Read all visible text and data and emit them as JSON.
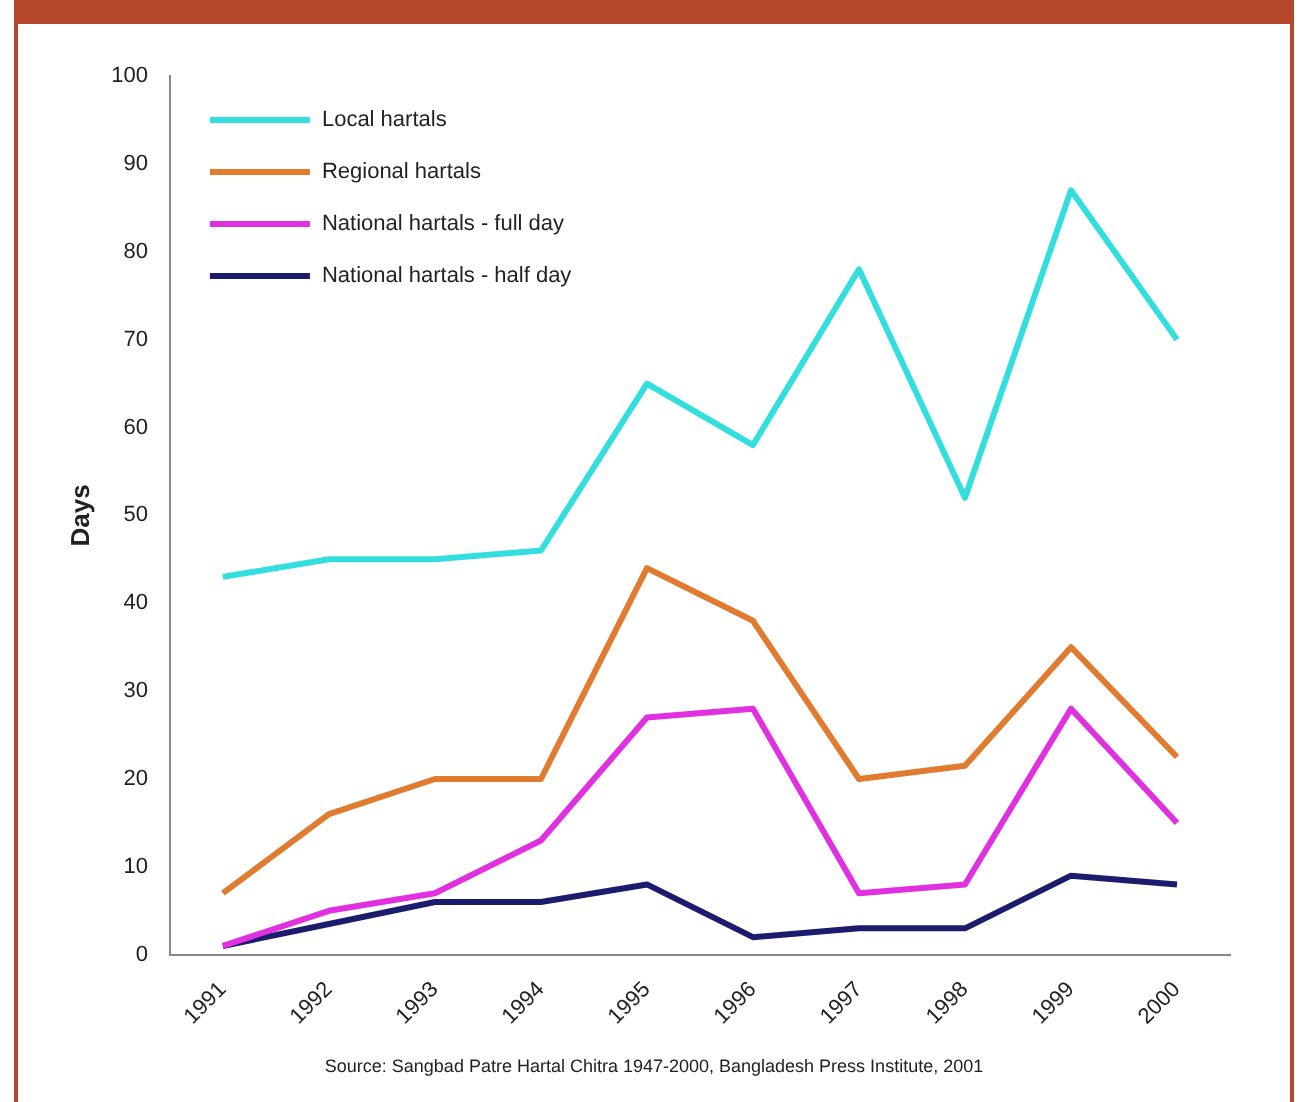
{
  "chart_data": {
    "type": "line",
    "ylabel": "Days",
    "categories": [
      "1991",
      "1992",
      "1993",
      "1994",
      "1995",
      "1996",
      "1997",
      "1998",
      "1999",
      "2000"
    ],
    "ylim": [
      0,
      100
    ],
    "yticks": [
      0,
      10,
      20,
      30,
      40,
      50,
      60,
      70,
      80,
      90,
      100
    ],
    "grid": false,
    "legend": "top left",
    "marker": "none",
    "line_style": "solid",
    "series": [
      {
        "name": "Local hartals",
        "color": "#33dede",
        "values": [
          43,
          45,
          45,
          46,
          65,
          58,
          78,
          52,
          87,
          70
        ]
      },
      {
        "name": "Regional hartals",
        "color": "#e07b30",
        "values": [
          7,
          16,
          20,
          20,
          44,
          38,
          20,
          21.5,
          35,
          22.5
        ]
      },
      {
        "name": "National hartals - full day",
        "color": "#e030e0",
        "values": [
          1,
          5,
          7,
          13,
          27,
          28,
          7,
          8,
          28,
          15
        ]
      },
      {
        "name": "National hartals - half day",
        "color": "#1c1c6e",
        "values": [
          1,
          3.5,
          6,
          6,
          8,
          2,
          3,
          3,
          9,
          8
        ]
      }
    ],
    "annotations": [
      "Source: Sangbad Patre Hartal Chitra 1947-2000, Bangladesh Press Institute, 2001"
    ]
  }
}
